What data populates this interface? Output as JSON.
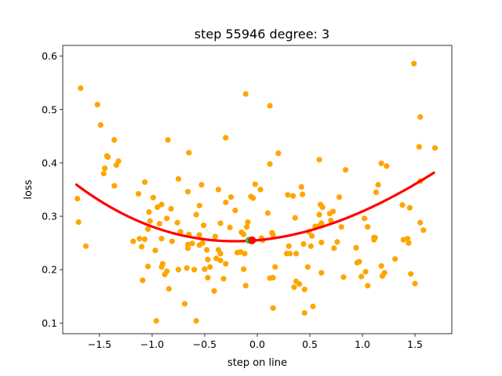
{
  "chart_data": {
    "type": "scatter",
    "title": "step 55946   degree: 3",
    "xlabel": "step on line",
    "ylabel": "loss",
    "xlim": [
      -1.85,
      1.85
    ],
    "ylim": [
      0.08,
      0.62
    ],
    "xticks": [
      -1.5,
      -1.0,
      -0.5,
      0.0,
      0.5,
      1.0,
      1.5
    ],
    "xtick_labels": [
      "−1.5",
      "−1.0",
      "−0.5",
      "0.0",
      "0.5",
      "1.0",
      "1.5"
    ],
    "yticks": [
      0.1,
      0.2,
      0.3,
      0.4,
      0.5,
      0.6
    ],
    "ytick_labels": [
      "0.1",
      "0.2",
      "0.3",
      "0.4",
      "0.5",
      "0.6"
    ],
    "grid": false,
    "colors": {
      "points": "#ffa500",
      "fit": "#ff0000",
      "current": "#ff0000",
      "marker_green": "#32cd32"
    },
    "series": [
      {
        "kind": "scatter",
        "points": [
          [
            1.49,
            0.586
          ],
          [
            -1.68,
            0.54
          ],
          [
            -0.11,
            0.529
          ],
          [
            -1.52,
            0.509
          ],
          [
            0.12,
            0.507
          ],
          [
            1.55,
            0.486
          ],
          [
            -1.49,
            0.471
          ],
          [
            -0.3,
            0.447
          ],
          [
            -0.85,
            0.443
          ],
          [
            -1.36,
            0.443
          ],
          [
            1.54,
            0.43
          ],
          [
            1.69,
            0.428
          ],
          [
            -0.65,
            0.419
          ],
          [
            0.2,
            0.418
          ],
          [
            -1.43,
            0.413
          ],
          [
            -1.42,
            0.411
          ],
          [
            0.59,
            0.406
          ],
          [
            -1.32,
            0.403
          ],
          [
            -1.34,
            0.396
          ],
          [
            0.12,
            0.398
          ],
          [
            1.18,
            0.399
          ],
          [
            1.23,
            0.394
          ],
          [
            0.84,
            0.387
          ],
          [
            -1.45,
            0.39
          ],
          [
            -1.46,
            0.38
          ],
          [
            -0.75,
            0.37
          ],
          [
            1.55,
            0.366
          ],
          [
            -1.07,
            0.364
          ],
          [
            -1.36,
            0.357
          ],
          [
            -0.53,
            0.359
          ],
          [
            0.42,
            0.355
          ],
          [
            -0.02,
            0.36
          ],
          [
            -0.37,
            0.35
          ],
          [
            0.03,
            0.35
          ],
          [
            -0.66,
            0.346
          ],
          [
            1.13,
            0.345
          ],
          [
            1.15,
            0.359
          ],
          [
            -1.71,
            0.333
          ],
          [
            -1.13,
            0.342
          ],
          [
            -0.99,
            0.335
          ],
          [
            0.43,
            0.341
          ],
          [
            0.29,
            0.34
          ],
          [
            0.34,
            0.338
          ],
          [
            -0.06,
            0.337
          ],
          [
            -0.04,
            0.334
          ],
          [
            0.78,
            0.336
          ],
          [
            -0.25,
            0.336
          ],
          [
            -0.3,
            0.326
          ],
          [
            -0.91,
            0.322
          ],
          [
            -0.95,
            0.317
          ],
          [
            -0.55,
            0.32
          ],
          [
            0.6,
            0.322
          ],
          [
            1.38,
            0.321
          ],
          [
            0.62,
            0.317
          ],
          [
            -0.82,
            0.314
          ],
          [
            -0.21,
            0.311
          ],
          [
            1.45,
            0.316
          ],
          [
            -1.03,
            0.308
          ],
          [
            0.72,
            0.309
          ],
          [
            0.1,
            0.306
          ],
          [
            -0.58,
            0.303
          ],
          [
            0.59,
            0.303
          ],
          [
            0.69,
            0.305
          ],
          [
            0.36,
            0.297
          ],
          [
            1.02,
            0.296
          ],
          [
            -0.86,
            0.296
          ],
          [
            -1.02,
            0.291
          ],
          [
            0.7,
            0.292
          ],
          [
            -0.76,
            0.288
          ],
          [
            0.61,
            0.287
          ],
          [
            1.55,
            0.288
          ],
          [
            -1.7,
            0.289
          ],
          [
            -0.93,
            0.286
          ],
          [
            -0.35,
            0.287
          ],
          [
            -0.09,
            0.289
          ],
          [
            0.59,
            0.282
          ],
          [
            1.05,
            0.28
          ],
          [
            -0.1,
            0.28
          ],
          [
            0.55,
            0.281
          ],
          [
            0.8,
            0.28
          ],
          [
            -0.51,
            0.283
          ],
          [
            -1.04,
            0.276
          ],
          [
            -0.26,
            0.279
          ],
          [
            0.49,
            0.271
          ],
          [
            1.58,
            0.274
          ],
          [
            -0.15,
            0.27
          ],
          [
            -0.73,
            0.271
          ],
          [
            -0.55,
            0.265
          ],
          [
            -0.65,
            0.266
          ],
          [
            -1.12,
            0.258
          ],
          [
            -0.13,
            0.266
          ],
          [
            0.14,
            0.269
          ],
          [
            0.15,
            0.265
          ],
          [
            0.52,
            0.263
          ],
          [
            1.12,
            0.26
          ],
          [
            -1.18,
            0.253
          ],
          [
            -0.91,
            0.258
          ],
          [
            -0.81,
            0.253
          ],
          [
            0.76,
            0.252
          ],
          [
            -1.07,
            0.257
          ],
          [
            -0.4,
            0.262
          ],
          [
            1.43,
            0.258
          ],
          [
            1.39,
            0.256
          ],
          [
            1.44,
            0.25
          ],
          [
            1.11,
            0.256
          ],
          [
            -0.52,
            0.25
          ],
          [
            0.04,
            0.259
          ],
          [
            0.05,
            0.255
          ],
          [
            1.11,
            0.26
          ],
          [
            0.44,
            0.248
          ],
          [
            0.61,
            0.251
          ],
          [
            0.3,
            0.244
          ],
          [
            -0.66,
            0.247
          ],
          [
            -0.66,
            0.24
          ],
          [
            -0.62,
            0.249
          ],
          [
            -0.55,
            0.246
          ],
          [
            0.51,
            0.244
          ],
          [
            -1.63,
            0.244
          ],
          [
            -1.1,
            0.243
          ],
          [
            0.73,
            0.24
          ],
          [
            0.94,
            0.241
          ],
          [
            -0.97,
            0.236
          ],
          [
            -0.48,
            0.237
          ],
          [
            -0.37,
            0.237
          ],
          [
            -0.16,
            0.233
          ],
          [
            0.28,
            0.23
          ],
          [
            -0.35,
            0.23
          ],
          [
            -0.12,
            0.23
          ],
          [
            -0.19,
            0.232
          ],
          [
            0.37,
            0.23
          ],
          [
            -0.47,
            0.219
          ],
          [
            -0.39,
            0.221
          ],
          [
            -0.35,
            0.217
          ],
          [
            -0.3,
            0.211
          ],
          [
            0.31,
            0.23
          ],
          [
            1.31,
            0.22
          ],
          [
            1.18,
            0.207
          ],
          [
            -0.9,
            0.211
          ],
          [
            0.97,
            0.215
          ],
          [
            0.95,
            0.213
          ],
          [
            -0.91,
            0.205
          ],
          [
            -0.45,
            0.205
          ],
          [
            -0.6,
            0.2
          ],
          [
            0.48,
            0.205
          ],
          [
            -0.75,
            0.2
          ],
          [
            -0.67,
            0.203
          ],
          [
            -0.5,
            0.201
          ],
          [
            -0.86,
            0.197
          ],
          [
            -0.13,
            0.201
          ],
          [
            -1.04,
            0.206
          ],
          [
            0.17,
            0.205
          ],
          [
            1.03,
            0.196
          ],
          [
            0.61,
            0.194
          ],
          [
            -0.88,
            0.191
          ],
          [
            0.82,
            0.186
          ],
          [
            0.99,
            0.187
          ],
          [
            1.21,
            0.194
          ],
          [
            1.19,
            0.188
          ],
          [
            1.46,
            0.192
          ],
          [
            1.5,
            0.174
          ],
          [
            -0.32,
            0.183
          ],
          [
            -0.47,
            0.185
          ],
          [
            0.15,
            0.185
          ],
          [
            0.12,
            0.184
          ],
          [
            -1.09,
            0.18
          ],
          [
            0.37,
            0.178
          ],
          [
            0.4,
            0.173
          ],
          [
            -0.11,
            0.17
          ],
          [
            1.05,
            0.17
          ],
          [
            0.35,
            0.167
          ],
          [
            -0.84,
            0.164
          ],
          [
            0.45,
            0.163
          ],
          [
            -0.41,
            0.16
          ],
          [
            -0.69,
            0.136
          ],
          [
            0.53,
            0.131
          ],
          [
            0.15,
            0.128
          ],
          [
            0.45,
            0.119
          ],
          [
            -0.96,
            0.104
          ],
          [
            -0.58,
            0.104
          ]
        ]
      },
      {
        "kind": "fit_polynomial",
        "degree": 3,
        "x_range": [
          -1.72,
          1.68
        ],
        "coefficients": [
          0.2551,
          0.0174,
          0.0398,
          -0.0032
        ]
      },
      {
        "kind": "current_point",
        "x": -0.05,
        "y": 0.255
      }
    ]
  }
}
